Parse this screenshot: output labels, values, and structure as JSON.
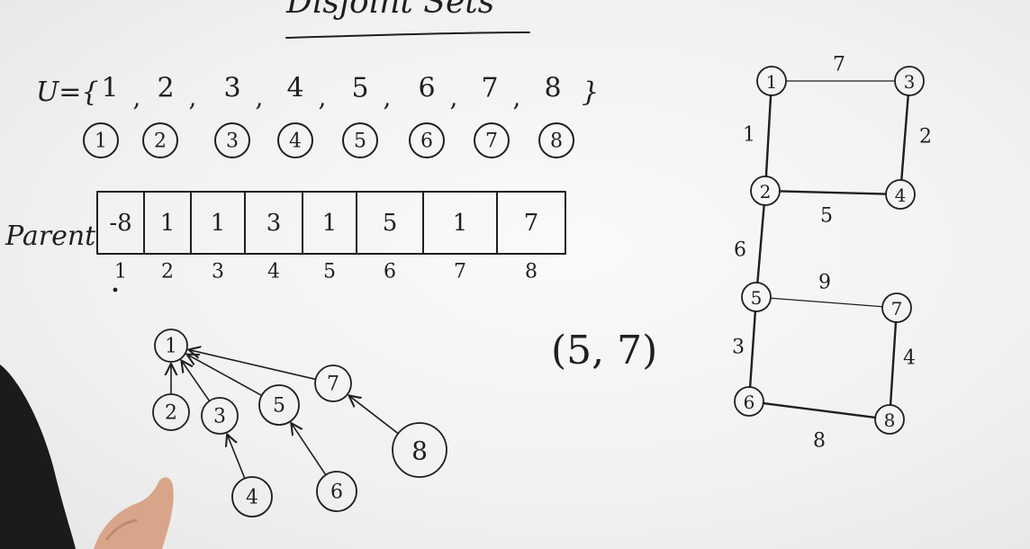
{
  "title": "Disjoint Sets",
  "universe": {
    "prefix": "U={",
    "suffix": "}",
    "elements": [
      "1",
      "2",
      "3",
      "4",
      "5",
      "6",
      "7",
      "8"
    ]
  },
  "singletons": [
    "1",
    "2",
    "3",
    "4",
    "5",
    "6",
    "7",
    "8"
  ],
  "parent_array": {
    "label": "Parent",
    "values": [
      "-8",
      "1",
      "1",
      "3",
      "1",
      "5",
      "1",
      "7"
    ],
    "indices": [
      "1",
      "2",
      "3",
      "4",
      "5",
      "6",
      "7",
      "8"
    ]
  },
  "tree": {
    "nodes": [
      "1",
      "2",
      "3",
      "4",
      "5",
      "6",
      "7",
      "8"
    ],
    "edges": [
      [
        "2",
        "1"
      ],
      [
        "3",
        "1"
      ],
      [
        "5",
        "1"
      ],
      [
        "7",
        "1"
      ],
      [
        "4",
        "3"
      ],
      [
        "6",
        "5"
      ],
      [
        "8",
        "7"
      ]
    ]
  },
  "current_edge": {
    "text": "(5, 7)"
  },
  "graph": {
    "nodes": [
      "1",
      "2",
      "3",
      "4",
      "5",
      "6",
      "7",
      "8"
    ],
    "edges": [
      {
        "from": "1",
        "to": "3",
        "weight": "7"
      },
      {
        "from": "1",
        "to": "2",
        "weight": "1"
      },
      {
        "from": "3",
        "to": "4",
        "weight": "2"
      },
      {
        "from": "2",
        "to": "4",
        "weight": "5"
      },
      {
        "from": "2",
        "to": "5",
        "weight": "6"
      },
      {
        "from": "5",
        "to": "7",
        "weight": "9"
      },
      {
        "from": "5",
        "to": "6",
        "weight": "3"
      },
      {
        "from": "7",
        "to": "8",
        "weight": "4"
      },
      {
        "from": "6",
        "to": "8",
        "weight": "8"
      }
    ]
  },
  "colors": {
    "ink": "#1f1f1f",
    "board": "#f4f4f4"
  }
}
